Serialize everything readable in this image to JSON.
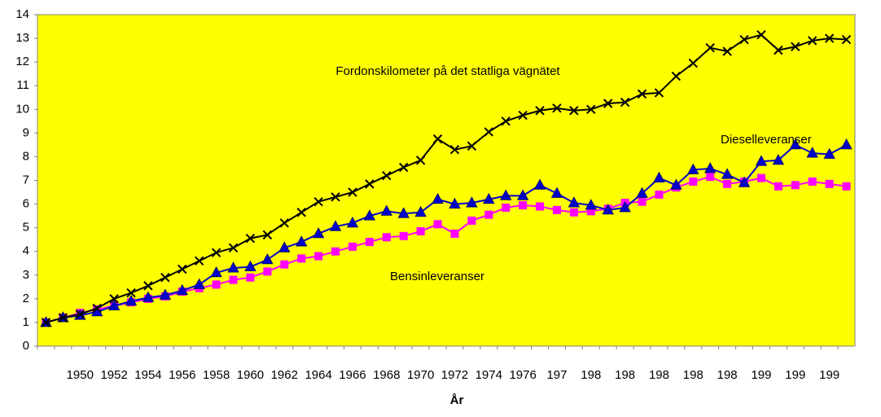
{
  "chart_data": {
    "type": "line",
    "x_label": "År",
    "categories": [
      null,
      null,
      "1950",
      null,
      "1952",
      null,
      "1954",
      null,
      "1956",
      null,
      "1958",
      null,
      "1960",
      null,
      "1962",
      null,
      "1964",
      null,
      "1966",
      null,
      "1968",
      null,
      "1970",
      null,
      "1972",
      null,
      "1974",
      null,
      "1976",
      null,
      "197",
      null,
      "198",
      null,
      "198",
      null,
      "198",
      null,
      "198",
      null,
      "198",
      null,
      "199",
      null,
      "199",
      null,
      "199",
      null
    ],
    "series": [
      {
        "name": "Fordonskilometer på det statliga vägnätet",
        "color": "#000000",
        "marker": "x",
        "values": [
          1.0,
          1.2,
          1.35,
          1.6,
          2.0,
          2.25,
          2.55,
          2.9,
          3.25,
          3.6,
          3.95,
          4.15,
          4.55,
          4.7,
          5.2,
          5.65,
          6.1,
          6.3,
          6.5,
          6.85,
          7.2,
          7.55,
          7.85,
          8.75,
          8.3,
          8.45,
          9.05,
          9.5,
          9.75,
          9.95,
          10.05,
          9.95,
          10.0,
          10.25,
          10.3,
          10.65,
          10.7,
          11.4,
          11.95,
          12.6,
          12.45,
          12.95,
          13.15,
          12.5,
          12.65,
          12.9,
          13.0,
          12.95
        ]
      },
      {
        "name": "Dieselleveranser",
        "color": "#0000cc",
        "marker": "triangle",
        "values": [
          1.0,
          1.2,
          1.3,
          1.45,
          1.7,
          1.9,
          2.05,
          2.15,
          2.35,
          2.6,
          3.1,
          3.3,
          3.35,
          3.65,
          4.15,
          4.4,
          4.75,
          5.05,
          5.2,
          5.5,
          5.7,
          5.6,
          5.65,
          6.2,
          6.0,
          6.05,
          6.2,
          6.35,
          6.35,
          6.8,
          6.45,
          6.05,
          5.95,
          5.75,
          5.85,
          6.45,
          7.1,
          6.8,
          7.45,
          7.5,
          7.25,
          6.9,
          7.8,
          7.85,
          8.5,
          8.15,
          8.1,
          8.5
        ]
      },
      {
        "name": "Bensinleveranser",
        "color": "#ff00ff",
        "marker": "square",
        "values": [
          1.0,
          1.2,
          1.4,
          1.55,
          1.7,
          1.85,
          2.0,
          2.1,
          2.3,
          2.45,
          2.6,
          2.8,
          2.9,
          3.15,
          3.45,
          3.7,
          3.8,
          4.0,
          4.2,
          4.4,
          4.6,
          4.65,
          4.85,
          5.15,
          4.75,
          5.3,
          5.55,
          5.85,
          5.95,
          5.9,
          5.75,
          5.65,
          5.7,
          5.8,
          6.05,
          6.1,
          6.4,
          6.7,
          6.95,
          7.15,
          6.85,
          6.95,
          7.1,
          6.75,
          6.8,
          6.95,
          6.85,
          6.75
        ]
      }
    ],
    "ylim": [
      0,
      14
    ],
    "yticks": [
      0,
      1,
      2,
      3,
      4,
      5,
      6,
      7,
      8,
      9,
      10,
      11,
      12,
      13,
      14
    ],
    "background": "#ffff00"
  }
}
